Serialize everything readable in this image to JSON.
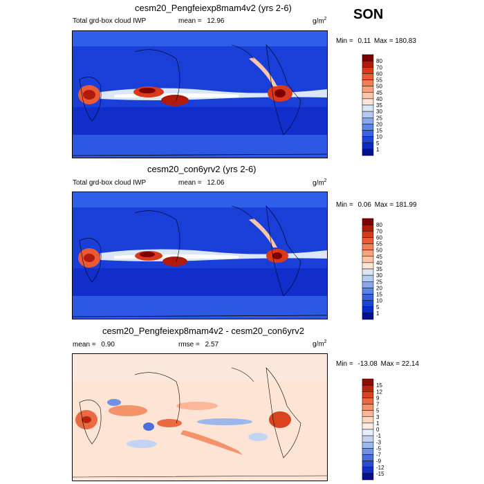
{
  "season": "SON",
  "unit_prefix": "g/m",
  "unit_sup": "2",
  "colors": {
    "ocean_low": "#0b2fcf",
    "land_line": "#000000"
  },
  "chart_data": [
    {
      "type": "heatmap",
      "title": "cesm20_Pengfeiexp8mam4v2 (yrs 2-6)",
      "variable": "Total grd-box cloud IWP",
      "mean_label": "mean =",
      "mean": "12.96",
      "min_label": "Min =",
      "min": "0.11",
      "max_label": "Max =",
      "max": "180.83",
      "levels": [
        "80",
        "70",
        "60",
        "55",
        "50",
        "45",
        "40",
        "35",
        "30",
        "25",
        "20",
        "15",
        "10",
        "5",
        "1"
      ],
      "colors": [
        "#7f0000",
        "#b01a0a",
        "#d93a1c",
        "#ea5a34",
        "#f27e55",
        "#f7a27c",
        "#fbc6a8",
        "#fde4d4",
        "#dbe6f6",
        "#b6cbf0",
        "#88a8ea",
        "#5c86e6",
        "#3764e2",
        "#1c44d8",
        "#0b2ac6",
        "#03118f"
      ]
    },
    {
      "type": "heatmap",
      "title": "cesm20_con6yrv2 (yrs 2-6)",
      "variable": "Total grd-box cloud IWP",
      "mean_label": "mean =",
      "mean": "12.06",
      "min_label": "Min =",
      "min": "0.06",
      "max_label": "Max =",
      "max": "181.99",
      "levels": [
        "80",
        "70",
        "60",
        "55",
        "50",
        "45",
        "40",
        "35",
        "30",
        "25",
        "20",
        "15",
        "10",
        "5",
        "1"
      ],
      "colors": [
        "#7f0000",
        "#b01a0a",
        "#d93a1c",
        "#ea5a34",
        "#f27e55",
        "#f7a27c",
        "#fbc6a8",
        "#fde4d4",
        "#dbe6f6",
        "#b6cbf0",
        "#88a8ea",
        "#5c86e6",
        "#3764e2",
        "#1c44d8",
        "#0b2ac6",
        "#03118f"
      ]
    },
    {
      "type": "heatmap",
      "title": "cesm20_Pengfeiexp8mam4v2 - cesm20_con6yrv2",
      "mean_label": "mean =",
      "mean": "0.90",
      "rmse_label": "rmse =",
      "rmse": "2.57",
      "min_label": "Min =",
      "min": "-13.08",
      "max_label": "Max =",
      "max": "22.14",
      "levels": [
        "15",
        "12",
        "9",
        "7",
        "5",
        "3",
        "1",
        "0",
        "-1",
        "-3",
        "-5",
        "-7",
        "-9",
        "-12",
        "-15"
      ],
      "colors": [
        "#8e0b00",
        "#b82310",
        "#d9431f",
        "#ea6a42",
        "#f49269",
        "#f9b798",
        "#fcd8c4",
        "#fdece1",
        "#e5eefa",
        "#c3d4f3",
        "#9cb7ec",
        "#6f92e3",
        "#4a6fdc",
        "#2b4cd2",
        "#1530c1",
        "#08108a"
      ]
    }
  ]
}
